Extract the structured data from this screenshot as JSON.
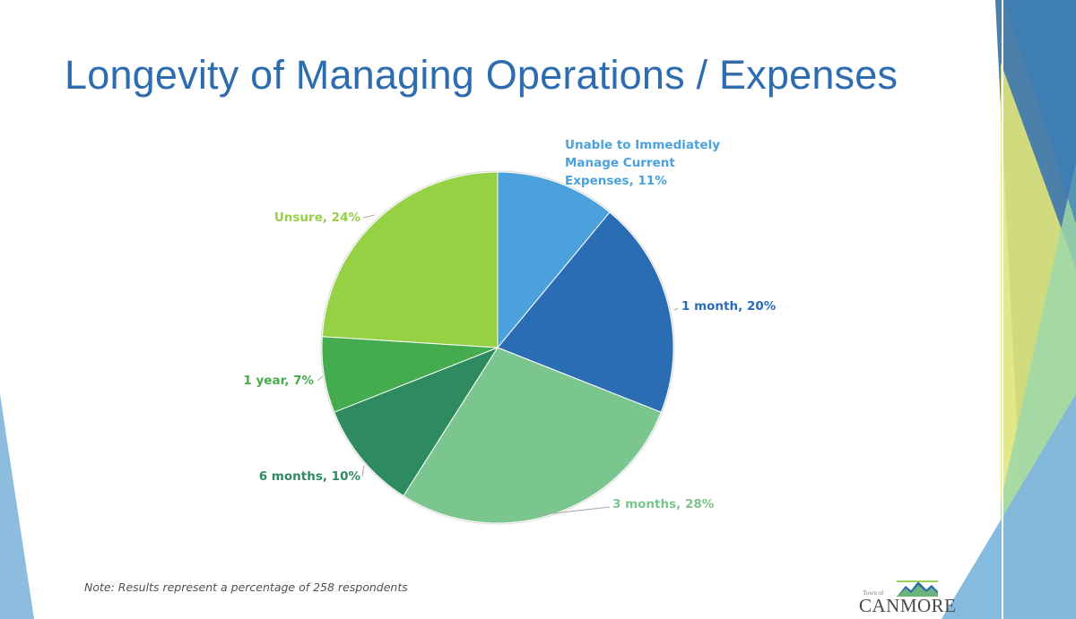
{
  "slide": {
    "title": "Longevity of Managing Operations / Expenses",
    "note": "Note: Results represent a percentage of 258 respondents",
    "logo": {
      "town_label": "Town of",
      "name": "CANMORE"
    }
  },
  "chart_data": {
    "type": "pie",
    "title": "Longevity of Managing Operations / Expenses",
    "start_angle_deg": 0,
    "direction": "clockwise",
    "slices": [
      {
        "label": "Unable to Immediately Manage Current Expenses",
        "value": 11,
        "display": "Unable to Immediately|Manage Current|Expenses, 11%",
        "color": "#4aa1db",
        "label_color": "#4aa1db"
      },
      {
        "label": "1 month",
        "value": 20,
        "display": "1 month, 20%",
        "color": "#2b6db5",
        "label_color": "#2b6db5"
      },
      {
        "label": "3 months",
        "value": 28,
        "display": "3 months, 28%",
        "color": "#7bc68e",
        "label_color": "#7bc68e"
      },
      {
        "label": "6 months",
        "value": 10,
        "display": "6 months, 10%",
        "color": "#2e8b5f",
        "label_color": "#2e8b5f"
      },
      {
        "label": "1 year",
        "value": 7,
        "display": "1 year, 7%",
        "color": "#44ac4f",
        "label_color": "#44ac4f"
      },
      {
        "label": "Unsure",
        "value": 24,
        "display": "Unsure, 24%",
        "color": "#96d045",
        "label_color": "#96d045"
      }
    ]
  }
}
